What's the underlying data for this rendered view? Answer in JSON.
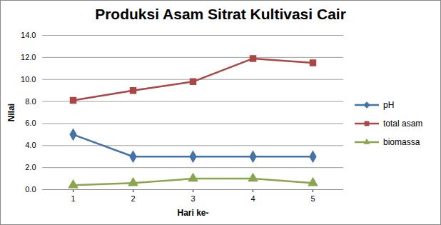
{
  "chart_data": {
    "type": "line",
    "title": "Produksi Asam Sitrat Kultivasi Cair",
    "x_label": "Hari ke-",
    "y_label": "Nilai",
    "categories": [
      1,
      2,
      3,
      4,
      5
    ],
    "series": [
      {
        "name": "pH",
        "color": "#4572a7",
        "marker": "diamond",
        "values": [
          5.0,
          3.0,
          3.0,
          3.0,
          3.0
        ]
      },
      {
        "name": "total asam",
        "color": "#aa4643",
        "marker": "square",
        "values": [
          8.1,
          9.0,
          9.8,
          11.9,
          11.5
        ]
      },
      {
        "name": "biomassa",
        "color": "#89a54e",
        "marker": "triangle",
        "values": [
          0.4,
          0.6,
          1.0,
          1.0,
          0.6
        ]
      }
    ],
    "ylim": [
      0,
      14
    ],
    "yticks": [
      {
        "value": 0,
        "label": "0.0"
      },
      {
        "value": 2,
        "label": "2.0"
      },
      {
        "value": 4,
        "label": "4.0"
      },
      {
        "value": 6,
        "label": "6.0"
      },
      {
        "value": 8,
        "label": "8.0"
      },
      {
        "value": 10,
        "label": "10.0"
      },
      {
        "value": 12,
        "label": "12.0"
      },
      {
        "value": 14,
        "label": "14.0"
      }
    ],
    "grid": true,
    "legend": "right"
  }
}
